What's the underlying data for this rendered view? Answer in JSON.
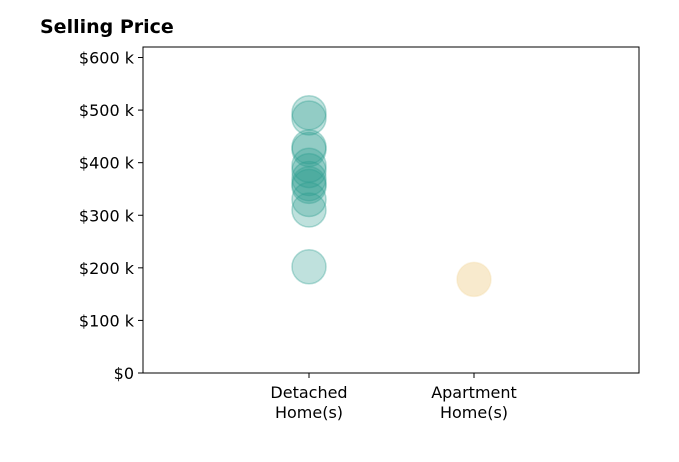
{
  "chart_data": {
    "type": "scatter",
    "title": "Selling Price",
    "xlabel": "",
    "ylabel": "",
    "categories": [
      "Detached Home(s)",
      "Apartment Home(s)"
    ],
    "category_lines": [
      [
        "Detached",
        "Home(s)"
      ],
      [
        "Apartment",
        "Home(s)"
      ]
    ],
    "ylim": [
      0,
      620000
    ],
    "yticks": [
      0,
      100000,
      200000,
      300000,
      400000,
      500000,
      600000
    ],
    "ytick_labels": [
      "$0",
      "$100 k",
      "$200 k",
      "$300 k",
      "$400 k",
      "$500 k",
      "$600 k"
    ],
    "grid": false,
    "series": [
      {
        "category": "Detached Home(s)",
        "color": "#2a9d8f",
        "values": [
          495000,
          485000,
          430000,
          425000,
          395000,
          385000,
          370000,
          360000,
          355000,
          330000,
          310000,
          202000
        ]
      },
      {
        "category": "Apartment Home(s)",
        "color": "#f3d9a4",
        "values": [
          178000
        ]
      }
    ]
  }
}
